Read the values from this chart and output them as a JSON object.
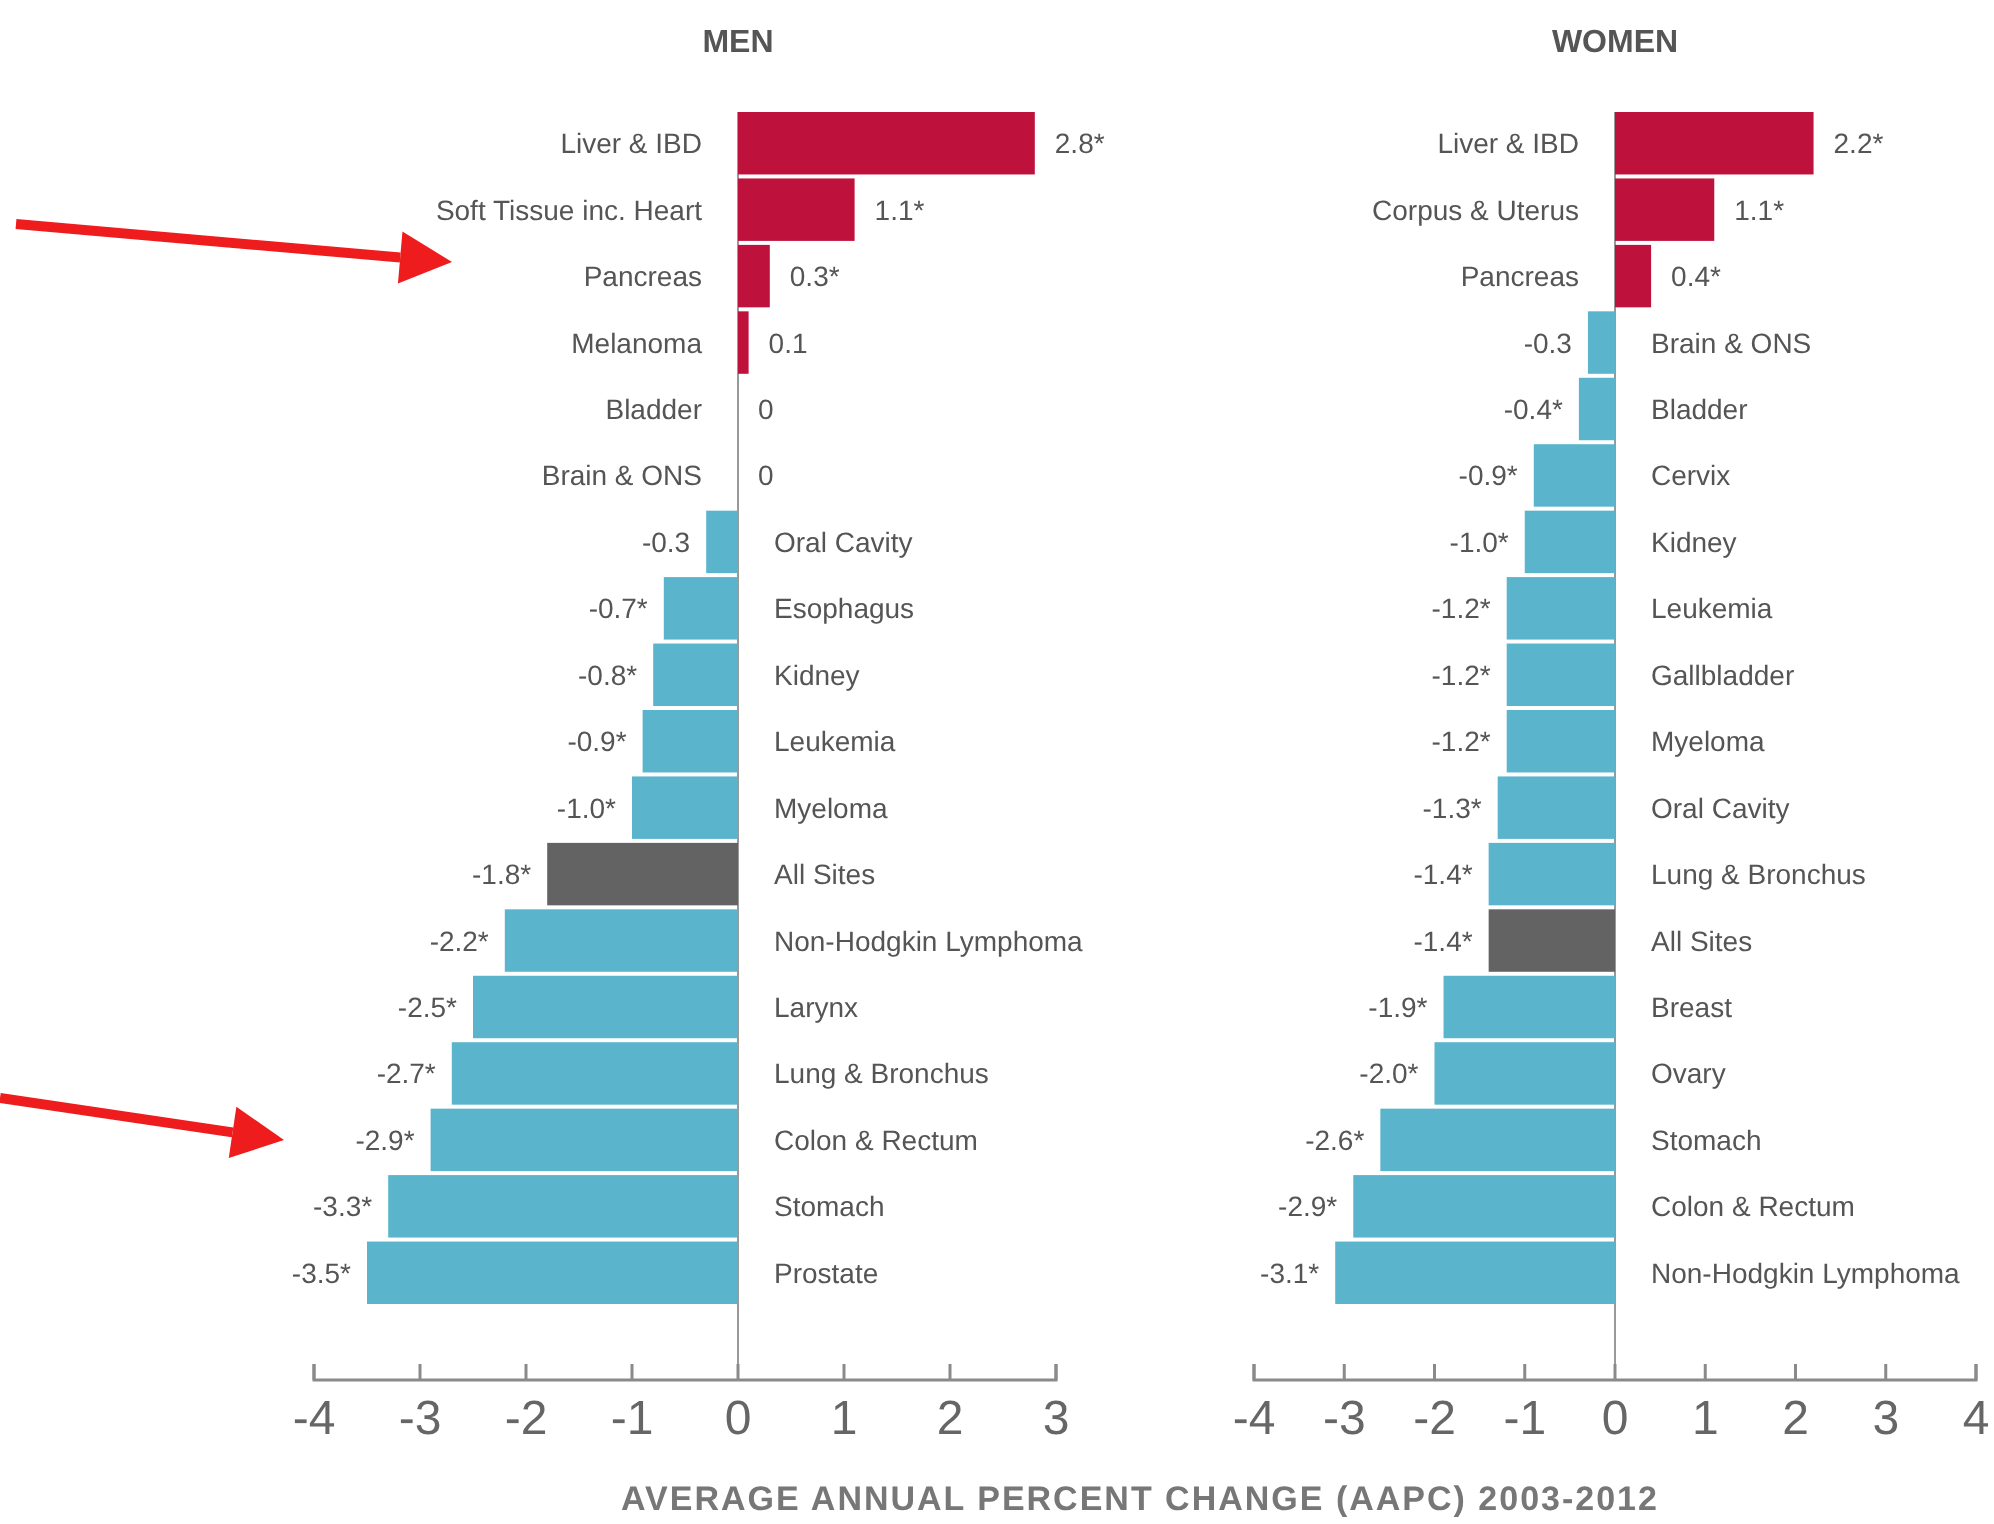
{
  "chart_data": [
    {
      "type": "bar",
      "orientation": "horizontal",
      "title": "MEN",
      "xlabel": "AVERAGE ANNUAL PERCENT CHANGE (AAPC) 2003-2012",
      "categories": [
        "Liver & IBD",
        "Soft Tissue inc. Heart",
        "Pancreas",
        "Melanoma",
        "Bladder",
        "Brain & ONS",
        "Oral Cavity",
        "Esophagus",
        "Kidney",
        "Leukemia",
        "Myeloma",
        "All Sites",
        "Non-Hodgkin Lymphoma",
        "Larynx",
        "Lung & Bronchus",
        "Colon & Rectum",
        "Stomach",
        "Prostate"
      ],
      "values": [
        2.8,
        1.1,
        0.3,
        0.1,
        0,
        0,
        -0.3,
        -0.7,
        -0.8,
        -0.9,
        -1.0,
        -1.8,
        -2.2,
        -2.5,
        -2.7,
        -2.9,
        -3.3,
        -3.5
      ],
      "value_labels": [
        "2.8*",
        "1.1*",
        "0.3*",
        "0.1",
        "0",
        "0",
        "-0.3",
        "-0.7*",
        "-0.8*",
        "-0.9*",
        "-1.0*",
        "-1.8*",
        "-2.2*",
        "-2.5*",
        "-2.7*",
        "-2.9*",
        "-3.3*",
        "-3.5*"
      ],
      "colors": [
        "#be123c",
        "#be123c",
        "#be123c",
        "#be123c",
        "#5ab4cc",
        "#5ab4cc",
        "#5ab4cc",
        "#5ab4cc",
        "#5ab4cc",
        "#5ab4cc",
        "#5ab4cc",
        "#636363",
        "#5ab4cc",
        "#5ab4cc",
        "#5ab4cc",
        "#5ab4cc",
        "#5ab4cc",
        "#5ab4cc"
      ],
      "xlim": [
        -4,
        3
      ],
      "xticks": [
        -4,
        -3,
        -2,
        -1,
        0,
        1,
        2,
        3
      ],
      "grid": false
    },
    {
      "type": "bar",
      "orientation": "horizontal",
      "title": "WOMEN",
      "categories": [
        "Liver & IBD",
        "Corpus & Uterus",
        "Pancreas",
        "Brain & ONS",
        "Bladder",
        "Cervix",
        "Kidney",
        "Leukemia",
        "Gallbladder",
        "Myeloma",
        "Oral Cavity",
        "Lung & Bronchus",
        "All Sites",
        "Breast",
        "Ovary",
        "Stomach",
        "Colon & Rectum",
        "Non-Hodgkin Lymphoma"
      ],
      "values": [
        2.2,
        1.1,
        0.4,
        -0.3,
        -0.4,
        -0.9,
        -1.0,
        -1.2,
        -1.2,
        -1.2,
        -1.3,
        -1.4,
        -1.4,
        -1.9,
        -2.0,
        -2.6,
        -2.9,
        -3.1
      ],
      "value_labels": [
        "2.2*",
        "1.1*",
        "0.4*",
        "-0.3",
        "-0.4*",
        "-0.9*",
        "-1.0*",
        "-1.2*",
        "-1.2*",
        "-1.2*",
        "-1.3*",
        "-1.4*",
        "-1.4*",
        "-1.9*",
        "-2.0*",
        "-2.6*",
        "-2.9*",
        "-3.1*"
      ],
      "colors": [
        "#be123c",
        "#be123c",
        "#be123c",
        "#5ab4cc",
        "#5ab4cc",
        "#5ab4cc",
        "#5ab4cc",
        "#5ab4cc",
        "#5ab4cc",
        "#5ab4cc",
        "#5ab4cc",
        "#5ab4cc",
        "#636363",
        "#5ab4cc",
        "#5ab4cc",
        "#5ab4cc",
        "#5ab4cc",
        "#5ab4cc"
      ],
      "xlim": [
        -4,
        4
      ],
      "xticks": [
        -4,
        -3,
        -2,
        -1,
        0,
        1,
        2,
        3,
        4
      ],
      "grid": false
    }
  ]
}
